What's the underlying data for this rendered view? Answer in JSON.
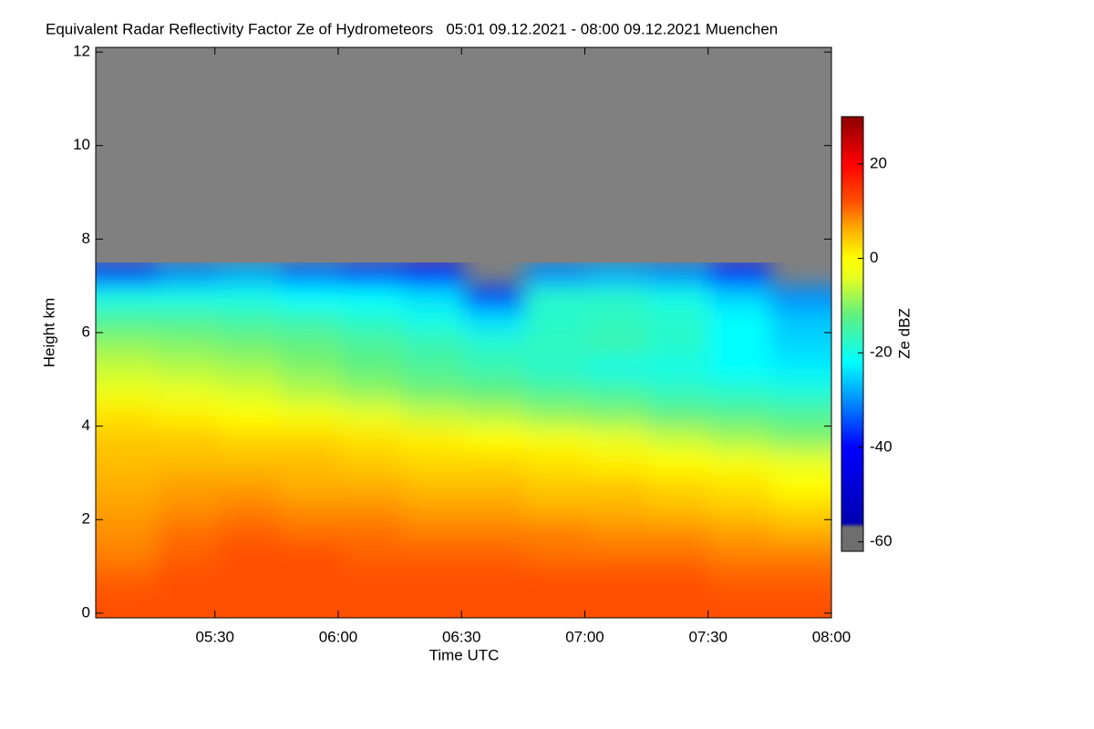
{
  "chart_data": {
    "type": "heatmap",
    "title": "Equivalent Radar Reflectivity Factor Ze of Hydrometeors   05:01 09.12.2021 - 08:00 09.12.2021 Muenchen",
    "xlabel": "Time UTC",
    "ylabel": "Height km",
    "colorbar_label": "Ze dBZ",
    "xlim": [
      5.0167,
      8.0
    ],
    "xticks": [
      {
        "value": 5.5,
        "label": "05:30"
      },
      {
        "value": 6.0,
        "label": "06:00"
      },
      {
        "value": 6.5,
        "label": "06:30"
      },
      {
        "value": 7.0,
        "label": "07:00"
      },
      {
        "value": 7.5,
        "label": "07:30"
      },
      {
        "value": 8.0,
        "label": "08:00"
      }
    ],
    "ylim": [
      -0.1,
      12.1
    ],
    "yticks": [
      0,
      2,
      4,
      6,
      8,
      10,
      12
    ],
    "clim": [
      -62,
      30
    ],
    "cticks": [
      20,
      0,
      -20,
      -40,
      -60
    ],
    "background": "#808080",
    "colorscale": [
      [
        -62,
        "#6e6e6e"
      ],
      [
        -57,
        "#6e6e6e"
      ],
      [
        -56,
        "#0000b0"
      ],
      [
        -40,
        "#0000ff"
      ],
      [
        -30,
        "#0090ff"
      ],
      [
        -22,
        "#00ffff"
      ],
      [
        -12,
        "#60f080"
      ],
      [
        -4,
        "#e8ff20"
      ],
      [
        0,
        "#ffff00"
      ],
      [
        6,
        "#ffb000"
      ],
      [
        12,
        "#ff5000"
      ],
      [
        20,
        "#ff0000"
      ],
      [
        30,
        "#8b0000"
      ]
    ],
    "x": [
      5.1411,
      5.3898,
      5.6384,
      5.8871,
      6.1357,
      6.3844,
      6.6331,
      6.8817,
      7.1304,
      7.379,
      7.6277,
      7.8763
    ],
    "y": [
      0.25,
      0.75,
      1.25,
      1.75,
      2.25,
      2.75,
      3.25,
      3.75,
      4.25,
      4.75,
      5.25,
      5.75,
      6.25,
      6.75,
      7.25
    ],
    "values": [
      [
        12,
        12,
        12,
        12,
        12,
        12,
        12,
        12,
        12,
        12,
        12,
        12
      ],
      [
        11,
        12,
        12,
        12,
        12,
        12,
        12,
        12,
        12,
        12,
        11,
        11
      ],
      [
        9,
        11,
        12,
        12,
        11,
        11,
        11,
        10,
        10,
        10,
        9,
        9
      ],
      [
        8,
        10,
        11,
        10,
        10,
        9,
        9,
        9,
        8,
        8,
        7,
        6
      ],
      [
        7,
        8,
        9,
        8,
        8,
        7,
        7,
        6,
        6,
        5,
        4,
        3
      ],
      [
        6,
        7,
        7,
        6,
        6,
        5,
        5,
        4,
        4,
        3,
        2,
        0
      ],
      [
        5,
        5,
        5,
        5,
        4,
        3,
        3,
        2,
        1,
        0,
        -2,
        -4
      ],
      [
        4,
        4,
        3,
        3,
        2,
        1,
        0,
        -2,
        -4,
        -6,
        -8,
        -10
      ],
      [
        2,
        1,
        0,
        -2,
        -4,
        -6,
        -7,
        -9,
        -10,
        -12,
        -13,
        -14
      ],
      [
        -3,
        -4,
        -5,
        -7,
        -9,
        -11,
        -12,
        -14,
        -15,
        -17,
        -18,
        -19
      ],
      [
        -6,
        -7,
        -8,
        -10,
        -12,
        -14,
        -16,
        -18,
        -20,
        -20,
        -22,
        -23
      ],
      [
        -9,
        -10,
        -11,
        -12,
        -14,
        -16,
        -18,
        -17,
        -16,
        -18,
        -22,
        -25
      ],
      [
        -14,
        -14,
        -15,
        -16,
        -18,
        -20,
        -24,
        -18,
        -17,
        -18,
        -22,
        -26
      ],
      [
        -20,
        -20,
        -20,
        -22,
        -22,
        -24,
        -35,
        -18,
        -18,
        -20,
        -25,
        -30
      ],
      [
        -35,
        -30,
        -28,
        -32,
        -35,
        -40,
        null,
        -30,
        -28,
        -30,
        -38,
        null
      ]
    ]
  }
}
